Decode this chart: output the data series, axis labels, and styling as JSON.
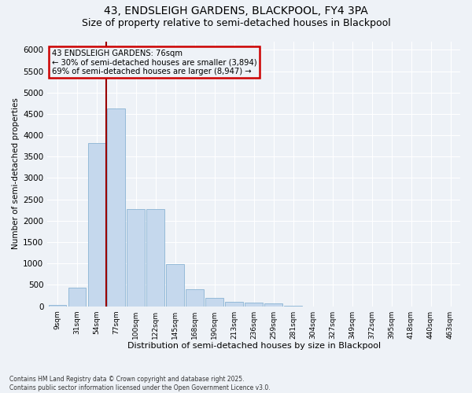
{
  "title1": "43, ENDSLEIGH GARDENS, BLACKPOOL, FY4 3PA",
  "title2": "Size of property relative to semi-detached houses in Blackpool",
  "xlabel": "Distribution of semi-detached houses by size in Blackpool",
  "ylabel": "Number of semi-detached properties",
  "categories": [
    "9sqm",
    "31sqm",
    "54sqm",
    "77sqm",
    "100sqm",
    "122sqm",
    "145sqm",
    "168sqm",
    "190sqm",
    "213sqm",
    "236sqm",
    "259sqm",
    "281sqm",
    "304sqm",
    "327sqm",
    "349sqm",
    "372sqm",
    "395sqm",
    "418sqm",
    "440sqm",
    "463sqm"
  ],
  "values": [
    30,
    430,
    3820,
    4620,
    2280,
    2270,
    980,
    390,
    190,
    110,
    90,
    60,
    10,
    0,
    0,
    0,
    0,
    0,
    0,
    0,
    0
  ],
  "bar_color": "#c5d8ed",
  "bar_edge_color": "#8ab4d4",
  "line_x_index": 3,
  "line_color": "#990000",
  "annotation_title": "43 ENDSLEIGH GARDENS: 76sqm",
  "annotation_line1": "← 30% of semi-detached houses are smaller (3,894)",
  "annotation_line2": "69% of semi-detached houses are larger (8,947) →",
  "annotation_box_color": "#cc0000",
  "ylim": [
    0,
    6200
  ],
  "yticks": [
    0,
    500,
    1000,
    1500,
    2000,
    2500,
    3000,
    3500,
    4000,
    4500,
    5000,
    5500,
    6000
  ],
  "footnote1": "Contains HM Land Registry data © Crown copyright and database right 2025.",
  "footnote2": "Contains public sector information licensed under the Open Government Licence v3.0.",
  "bg_color": "#eef2f7",
  "grid_color": "#ffffff",
  "title1_fontsize": 10,
  "title2_fontsize": 9
}
